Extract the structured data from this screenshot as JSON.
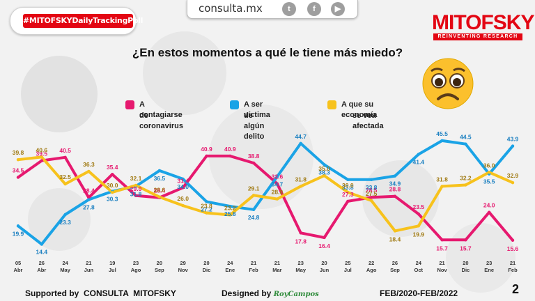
{
  "top_bar": {
    "site": "consulta.mx",
    "icons": [
      "twitter-icon",
      "facebook-icon",
      "youtube-icon"
    ]
  },
  "hashtag": "#MITOFSKYDailyTrackingPoll",
  "brand": {
    "name": "MITOFSKY",
    "tagline": "REINVENTING RESEARCH"
  },
  "question": "¿En estos momentos a qué le tiene más miedo?",
  "footer": {
    "supported_by_label": "Supported by",
    "supported_by_value": "CONSULTA  MITOFSKY",
    "designed_by_label": "Designed by",
    "designed_by_value": "RoyCampos",
    "period": "FEB/2020-FEB/2022"
  },
  "page_number": "2",
  "colors": {
    "pink": "#e6196f",
    "blue": "#1aa3e6",
    "yellow": "#f7c21c",
    "brand_red": "#e30613"
  },
  "chart_data": {
    "type": "line",
    "title": "¿En estos momentos a qué le tiene más miedo?",
    "categories": [
      {
        "day": "05",
        "mon": "Abr"
      },
      {
        "day": "26",
        "mon": "Abr"
      },
      {
        "day": "24",
        "mon": "May"
      },
      {
        "day": "21",
        "mon": "Jun"
      },
      {
        "day": "19",
        "mon": "Jul"
      },
      {
        "day": "23",
        "mon": "Ago"
      },
      {
        "day": "20",
        "mon": "Sep"
      },
      {
        "day": "29",
        "mon": "Nov"
      },
      {
        "day": "20",
        "mon": "Dic"
      },
      {
        "day": "24",
        "mon": "Ene"
      },
      {
        "day": "21",
        "mon": "Feb"
      },
      {
        "day": "21",
        "mon": "Mar"
      },
      {
        "day": "23",
        "mon": "May"
      },
      {
        "day": "20",
        "mon": "Jun"
      },
      {
        "day": "25",
        "mon": "Jul"
      },
      {
        "day": "22",
        "mon": "Ago"
      },
      {
        "day": "26",
        "mon": "Sep"
      },
      {
        "day": "24",
        "mon": "Oct"
      },
      {
        "day": "21",
        "mon": "Nov"
      },
      {
        "day": "20",
        "mon": "Dic"
      },
      {
        "day": "23",
        "mon": "Ene"
      },
      {
        "day": "21",
        "mon": "Feb"
      }
    ],
    "ylim": [
      12,
      48
    ],
    "series": [
      {
        "name": "A contagiarse de coronavirus",
        "legend_lines": [
          "A contagiarse",
          "de coronavirus"
        ],
        "color": "#e6196f",
        "values": [
          34.5,
          39.5,
          40.5,
          28.4,
          35.4,
          29.0,
          28.4,
          31.4,
          40.9,
          40.9,
          38.8,
          32.6,
          17.8,
          16.4,
          27.3,
          28.5,
          28.8,
          23.5,
          15.7,
          15.7,
          24.0,
          15.6
        ]
      },
      {
        "name": "A ser víctima de algún delito",
        "legend_lines": [
          "A ser víctima",
          "de algún delito"
        ],
        "color": "#1aa3e6",
        "values": [
          19.9,
          14.4,
          23.3,
          27.8,
          30.3,
          31.8,
          36.5,
          34.0,
          27.2,
          25.8,
          24.8,
          34.7,
          44.7,
          38.3,
          33.8,
          33.8,
          34.9,
          41.4,
          45.5,
          44.5,
          35.5,
          43.9
        ]
      },
      {
        "name": "A que su economía se vea afectada",
        "legend_lines": [
          "A que su economía",
          "se vea afectada"
        ],
        "color": "#f7c21c",
        "values": [
          39.8,
          40.6,
          32.5,
          36.3,
          30.0,
          32.1,
          28.6,
          26.0,
          23.8,
          23.2,
          29.1,
          28.0,
          31.8,
          35.0,
          30.0,
          27.5,
          18.4,
          19.9,
          31.8,
          32.2,
          36.0,
          32.9
        ]
      }
    ]
  }
}
